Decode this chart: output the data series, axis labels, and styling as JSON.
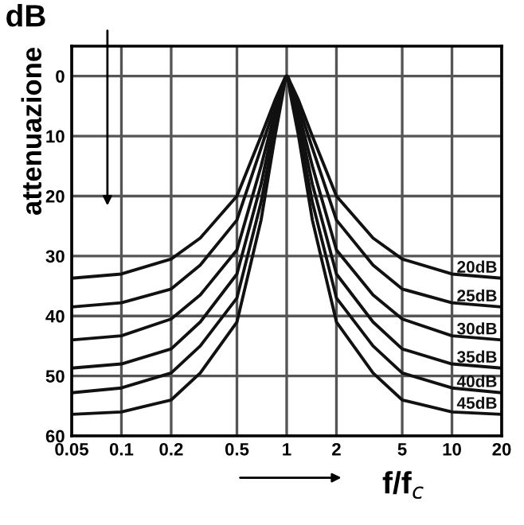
{
  "chart_data": {
    "type": "line",
    "xlabel": "f/f$_{c}$",
    "ylabel": "attenuazione",
    "annotations": [
      "dB"
    ],
    "x": [
      0.05,
      0.1,
      0.2,
      0.3,
      0.5,
      0.7,
      0.85,
      0.95,
      0.98,
      1,
      1.02,
      1.05,
      1.18,
      1.43,
      2,
      3.33,
      5,
      10,
      20
    ],
    "series": [
      {
        "name": "20dB",
        "color": "#111111",
        "values": [
          33.7,
          33,
          30.5,
          27,
          20,
          10,
          4,
          1,
          0.2,
          0,
          0.2,
          1,
          4,
          10,
          20,
          27,
          30.5,
          33,
          33.7
        ]
      },
      {
        "name": "25dB",
        "color": "#111111",
        "values": [
          38.5,
          37.8,
          35.5,
          31.5,
          24,
          12,
          5,
          1.3,
          0.25,
          0,
          0.25,
          1.3,
          5,
          12,
          24,
          31.5,
          35.5,
          37.8,
          38.5
        ]
      },
      {
        "name": "30dB",
        "color": "#111111",
        "values": [
          44,
          43.3,
          40.5,
          36.5,
          29,
          15,
          6,
          1.6,
          0.3,
          0,
          0.3,
          1.6,
          6,
          15,
          29,
          36.5,
          40.5,
          43.3,
          44
        ]
      },
      {
        "name": "35dB",
        "color": "#111111",
        "values": [
          48.7,
          48,
          45.5,
          41,
          33,
          18,
          7,
          2,
          0.35,
          0,
          0.35,
          2,
          7,
          18,
          33,
          41,
          45.5,
          48,
          48.7
        ]
      },
      {
        "name": "40dB",
        "color": "#111111",
        "values": [
          52.8,
          52,
          49.5,
          45,
          37,
          21,
          8.5,
          2.3,
          0.4,
          0,
          0.4,
          2.3,
          8.5,
          21,
          37,
          45,
          49.5,
          52,
          52.8
        ]
      },
      {
        "name": "45dB",
        "color": "#111111",
        "values": [
          56.4,
          56,
          54,
          49.5,
          41,
          24,
          10,
          2.8,
          0.45,
          0,
          0.45,
          2.8,
          10,
          24,
          41,
          49.5,
          54,
          56,
          56.4
        ]
      }
    ],
    "log": "x",
    "xlim": [
      0.05,
      20
    ],
    "xticks": [
      0.05,
      0.1,
      0.2,
      0.5,
      1,
      2,
      5,
      10,
      20
    ],
    "ylim": [
      60,
      -5
    ],
    "yticks": [
      0,
      10,
      20,
      30,
      40,
      50,
      60
    ],
    "grid": true,
    "legend": false,
    "marker": "none",
    "line_style": "solid"
  }
}
